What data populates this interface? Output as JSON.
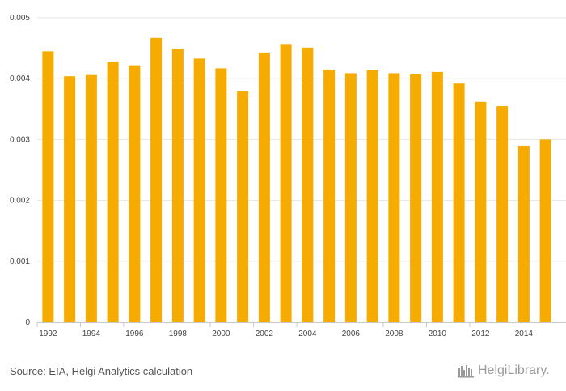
{
  "chart_data": {
    "type": "bar",
    "categories": [
      "1992",
      "1993",
      "1994",
      "1995",
      "1996",
      "1997",
      "1998",
      "1999",
      "2000",
      "2001",
      "2002",
      "2003",
      "2004",
      "2005",
      "2006",
      "2007",
      "2008",
      "2009",
      "2010",
      "2011",
      "2012",
      "2013",
      "2014",
      "2015"
    ],
    "values": [
      0.00445,
      0.00404,
      0.00406,
      0.00428,
      0.00422,
      0.00467,
      0.00449,
      0.00433,
      0.00417,
      0.00379,
      0.00443,
      0.00457,
      0.00451,
      0.00415,
      0.00409,
      0.00414,
      0.00409,
      0.00407,
      0.00411,
      0.00392,
      0.00362,
      0.00355,
      0.0029,
      0.003
    ],
    "x_tick_labels": [
      "1992",
      "1994",
      "1996",
      "1998",
      "2000",
      "2002",
      "2004",
      "2006",
      "2008",
      "2010",
      "2012",
      "2014"
    ],
    "y_ticks": [
      "0",
      "0.001",
      "0.002",
      "0.003",
      "0.004",
      "0.005"
    ],
    "ylim": [
      0,
      0.005
    ],
    "title": "",
    "xlabel": "",
    "ylabel": "",
    "grid": true,
    "bar_color": "#f5ab00"
  },
  "footer": {
    "source": "Source: EIA, Helgi Analytics calculation",
    "logo_text": "HelgiLibrary."
  }
}
